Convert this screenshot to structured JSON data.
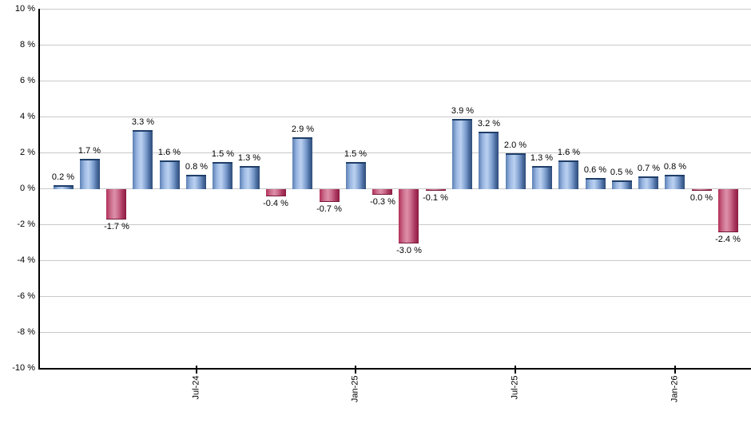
{
  "chart_data": {
    "type": "bar",
    "title": "",
    "xlabel": "",
    "ylabel": "",
    "ylim": [
      -10,
      10
    ],
    "ytick_step": 2,
    "ytick_labels": [
      "10 %",
      "8 %",
      "6 %",
      "4 %",
      "2 %",
      "0 %",
      "-2 %",
      "-4 %",
      "-6 %",
      "-8 %",
      "-10 %"
    ],
    "grid": "horizontal",
    "legend": "none",
    "bars": [
      {
        "value": 0.2,
        "label": "0.2 %",
        "color": "positive"
      },
      {
        "value": 1.7,
        "label": "1.7 %",
        "color": "positive"
      },
      {
        "value": -1.7,
        "label": "-1.7 %",
        "color": "negative"
      },
      {
        "value": 3.3,
        "label": "3.3 %",
        "color": "positive"
      },
      {
        "value": 1.6,
        "label": "1.6 %",
        "color": "positive"
      },
      {
        "value": 0.8,
        "label": "0.8 %",
        "color": "positive"
      },
      {
        "value": 1.5,
        "label": "1.5 %",
        "color": "positive"
      },
      {
        "value": 1.3,
        "label": "1.3 %",
        "color": "positive"
      },
      {
        "value": -0.4,
        "label": "-0.4 %",
        "color": "negative"
      },
      {
        "value": 2.9,
        "label": "2.9 %",
        "color": "positive"
      },
      {
        "value": -0.7,
        "label": "-0.7 %",
        "color": "negative"
      },
      {
        "value": 1.5,
        "label": "1.5 %",
        "color": "positive"
      },
      {
        "value": -0.3,
        "label": "-0.3 %",
        "color": "negative"
      },
      {
        "value": -3.0,
        "label": "-3.0 %",
        "color": "negative"
      },
      {
        "value": -0.1,
        "label": "-0.1 %",
        "color": "negative"
      },
      {
        "value": 3.9,
        "label": "3.9 %",
        "color": "positive"
      },
      {
        "value": 3.2,
        "label": "3.2 %",
        "color": "positive"
      },
      {
        "value": 2.0,
        "label": "2.0 %",
        "color": "positive"
      },
      {
        "value": 1.3,
        "label": "1.3 %",
        "color": "positive"
      },
      {
        "value": 1.6,
        "label": "1.6 %",
        "color": "positive"
      },
      {
        "value": 0.6,
        "label": "0.6 %",
        "color": "positive"
      },
      {
        "value": 0.5,
        "label": "0.5 %",
        "color": "positive"
      },
      {
        "value": 0.7,
        "label": "0.7 %",
        "color": "positive"
      },
      {
        "value": 0.8,
        "label": "0.8 %",
        "color": "positive"
      },
      {
        "value": 0.0,
        "label": "0.0 %",
        "color": "negative"
      },
      {
        "value": -2.4,
        "label": "-2.4 %",
        "color": "negative"
      }
    ],
    "xticks": [
      {
        "bar_index": 5,
        "label": "Jul-24"
      },
      {
        "bar_index": 11,
        "label": "Jan-25"
      },
      {
        "bar_index": 17,
        "label": "Jul-25"
      },
      {
        "bar_index": 23,
        "label": "Jan-26"
      }
    ],
    "colors": {
      "positive_bar_light": "#bcd1f0",
      "positive_bar_dark": "#2e4d7a",
      "positive_bar_cap": "#1f3e68",
      "negative_bar_light": "#dd90a9",
      "negative_bar_dark": "#8d1a40",
      "gridline": "#c9c9c9",
      "axis": "#000000",
      "text": "#000000",
      "background": "#ffffff"
    }
  }
}
